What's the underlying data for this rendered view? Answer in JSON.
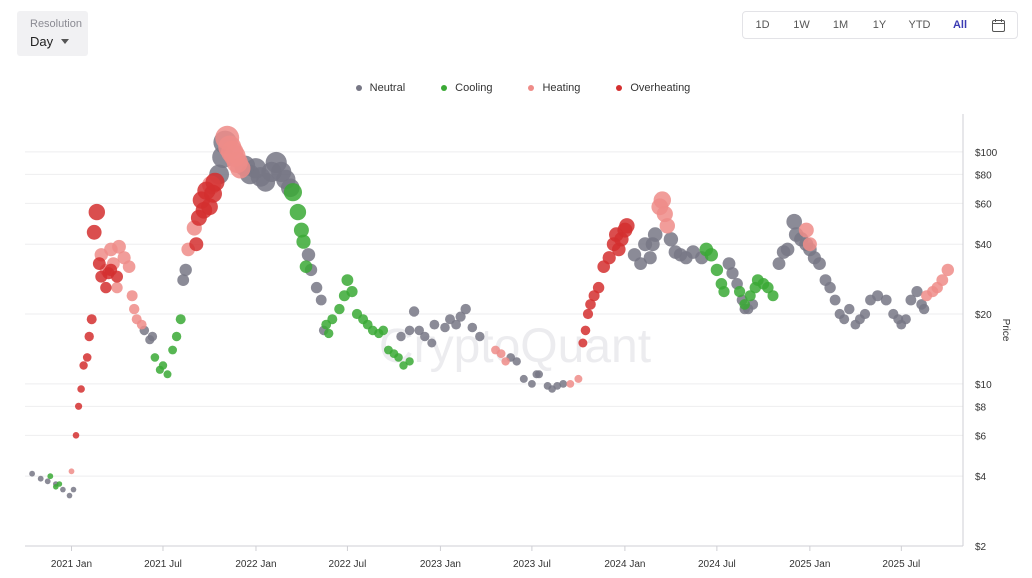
{
  "resolution": {
    "label": "Resolution",
    "value": "Day"
  },
  "ranges": [
    {
      "label": "1D",
      "active": false
    },
    {
      "label": "1W",
      "active": false
    },
    {
      "label": "1M",
      "active": false
    },
    {
      "label": "1Y",
      "active": false
    },
    {
      "label": "YTD",
      "active": false
    },
    {
      "label": "All",
      "active": true
    }
  ],
  "calendar_icon": "calendar-icon",
  "watermark": "CryptoQuant",
  "chart_data": {
    "type": "scatter",
    "title": "",
    "xlabel": "",
    "ylabel": "Price",
    "y_scale": "log",
    "ylim": [
      2,
      140
    ],
    "xlim": [
      "2020-10-01",
      "2025-10-31"
    ],
    "x_ticks": [
      "2021 Jan",
      "2021 Jul",
      "2022 Jan",
      "2022 Jul",
      "2023 Jan",
      "2023 Jul",
      "2024 Jan",
      "2024 Jul",
      "2025 Jan",
      "2025 Jul"
    ],
    "x_tick_dates": [
      "2021-01-01",
      "2021-07-01",
      "2022-01-01",
      "2022-07-01",
      "2023-01-01",
      "2023-07-01",
      "2024-01-01",
      "2024-07-01",
      "2025-01-01",
      "2025-07-01"
    ],
    "y_ticks": [
      {
        "value": 100,
        "label": "$100"
      },
      {
        "value": 80,
        "label": "$80"
      },
      {
        "value": 60,
        "label": "$60"
      },
      {
        "value": 40,
        "label": "$40"
      },
      {
        "value": 20,
        "label": "$20"
      },
      {
        "value": 10,
        "label": "$10"
      },
      {
        "value": 8,
        "label": "$8"
      },
      {
        "value": 6,
        "label": "$6"
      },
      {
        "value": 4,
        "label": "$4"
      },
      {
        "value": 2,
        "label": "$2"
      }
    ],
    "legend_position": "top-center",
    "grid": true,
    "series": [
      {
        "name": "Neutral",
        "color": "#777785",
        "points": [
          [
            "2020-10-15",
            4.1
          ],
          [
            "2020-11-01",
            3.9
          ],
          [
            "2020-11-15",
            3.8
          ],
          [
            "2020-12-01",
            3.7
          ],
          [
            "2020-12-15",
            3.5
          ],
          [
            "2020-12-28",
            3.3
          ],
          [
            "2021-01-05",
            3.5
          ],
          [
            "2021-05-25",
            17
          ],
          [
            "2021-06-05",
            15.5
          ],
          [
            "2021-06-10",
            16
          ],
          [
            "2021-08-10",
            28
          ],
          [
            "2021-08-15",
            31
          ],
          [
            "2021-10-20",
            80
          ],
          [
            "2021-10-28",
            95
          ],
          [
            "2021-11-01",
            110
          ],
          [
            "2021-12-10",
            87
          ],
          [
            "2021-12-20",
            80
          ],
          [
            "2022-01-01",
            85
          ],
          [
            "2022-01-10",
            78
          ],
          [
            "2022-01-20",
            74
          ],
          [
            "2022-02-01",
            82
          ],
          [
            "2022-02-10",
            90
          ],
          [
            "2022-02-20",
            82
          ],
          [
            "2022-03-01",
            76
          ],
          [
            "2022-03-10",
            70
          ],
          [
            "2022-04-15",
            36
          ],
          [
            "2022-04-20",
            31
          ],
          [
            "2022-05-01",
            26
          ],
          [
            "2022-05-10",
            23
          ],
          [
            "2022-05-15",
            17
          ],
          [
            "2022-10-15",
            16
          ],
          [
            "2022-11-01",
            17
          ],
          [
            "2022-11-10",
            20.5
          ],
          [
            "2022-11-20",
            17
          ],
          [
            "2022-12-01",
            16
          ],
          [
            "2022-12-15",
            15
          ],
          [
            "2022-12-20",
            18
          ],
          [
            "2023-01-10",
            17.5
          ],
          [
            "2023-01-20",
            19
          ],
          [
            "2023-02-01",
            18
          ],
          [
            "2023-02-10",
            19.5
          ],
          [
            "2023-02-20",
            21
          ],
          [
            "2023-03-05",
            17.5
          ],
          [
            "2023-03-20",
            16
          ],
          [
            "2023-05-20",
            13
          ],
          [
            "2023-06-01",
            12.5
          ],
          [
            "2023-06-15",
            10.5
          ],
          [
            "2023-07-01",
            10
          ],
          [
            "2023-07-10",
            11
          ],
          [
            "2023-07-15",
            11
          ],
          [
            "2023-08-01",
            9.8
          ],
          [
            "2023-08-10",
            9.5
          ],
          [
            "2023-08-20",
            9.8
          ],
          [
            "2023-09-01",
            10
          ],
          [
            "2024-01-20",
            36
          ],
          [
            "2024-02-01",
            33
          ],
          [
            "2024-02-10",
            40
          ],
          [
            "2024-02-20",
            35
          ],
          [
            "2024-02-25",
            40
          ],
          [
            "2024-03-01",
            44
          ],
          [
            "2024-04-01",
            42
          ],
          [
            "2024-04-10",
            37
          ],
          [
            "2024-04-20",
            36
          ],
          [
            "2024-05-01",
            35
          ],
          [
            "2024-05-15",
            37
          ],
          [
            "2024-06-01",
            35
          ],
          [
            "2024-07-25",
            33
          ],
          [
            "2024-08-01",
            30
          ],
          [
            "2024-08-10",
            27
          ],
          [
            "2024-08-20",
            23
          ],
          [
            "2024-08-25",
            21
          ],
          [
            "2024-09-01",
            21
          ],
          [
            "2024-09-10",
            22
          ],
          [
            "2024-11-01",
            33
          ],
          [
            "2024-11-10",
            37
          ],
          [
            "2024-11-18",
            38
          ],
          [
            "2024-12-01",
            50
          ],
          [
            "2024-12-05",
            44
          ],
          [
            "2024-12-15",
            42
          ],
          [
            "2024-12-25",
            40
          ],
          [
            "2025-01-01",
            38
          ],
          [
            "2025-01-10",
            35
          ],
          [
            "2025-01-20",
            33
          ],
          [
            "2025-02-01",
            28
          ],
          [
            "2025-02-10",
            26
          ],
          [
            "2025-02-20",
            23
          ],
          [
            "2025-03-01",
            20
          ],
          [
            "2025-03-10",
            19
          ],
          [
            "2025-03-20",
            21
          ],
          [
            "2025-04-01",
            18
          ],
          [
            "2025-04-10",
            19
          ],
          [
            "2025-04-20",
            20
          ],
          [
            "2025-05-01",
            23
          ],
          [
            "2025-05-15",
            24
          ],
          [
            "2025-06-01",
            23
          ],
          [
            "2025-06-15",
            20
          ],
          [
            "2025-06-25",
            19
          ],
          [
            "2025-07-01",
            18
          ],
          [
            "2025-07-10",
            19
          ],
          [
            "2025-07-20",
            23
          ],
          [
            "2025-08-01",
            25
          ],
          [
            "2025-08-10",
            22
          ],
          [
            "2025-08-15",
            21
          ]
        ]
      },
      {
        "name": "Cooling",
        "color": "#3aa935",
        "points": [
          [
            "2020-11-20",
            4.0
          ],
          [
            "2020-12-01",
            3.6
          ],
          [
            "2020-12-08",
            3.7
          ],
          [
            "2021-06-15",
            13
          ],
          [
            "2021-06-25",
            11.5
          ],
          [
            "2021-07-01",
            12
          ],
          [
            "2021-07-10",
            11
          ],
          [
            "2021-07-20",
            14
          ],
          [
            "2021-07-28",
            16
          ],
          [
            "2021-08-05",
            19
          ],
          [
            "2022-03-15",
            67
          ],
          [
            "2022-03-25",
            55
          ],
          [
            "2022-04-01",
            46
          ],
          [
            "2022-04-05",
            41
          ],
          [
            "2022-04-10",
            32
          ],
          [
            "2022-05-20",
            18
          ],
          [
            "2022-05-25",
            16.5
          ],
          [
            "2022-06-01",
            19
          ],
          [
            "2022-06-15",
            21
          ],
          [
            "2022-06-25",
            24
          ],
          [
            "2022-07-01",
            28
          ],
          [
            "2022-07-10",
            25
          ],
          [
            "2022-07-20",
            20
          ],
          [
            "2022-08-01",
            19
          ],
          [
            "2022-08-10",
            18
          ],
          [
            "2022-08-20",
            17
          ],
          [
            "2022-09-01",
            16.5
          ],
          [
            "2022-09-10",
            17
          ],
          [
            "2022-09-20",
            14
          ],
          [
            "2022-10-01",
            13.5
          ],
          [
            "2022-10-10",
            13
          ],
          [
            "2022-10-20",
            12
          ],
          [
            "2022-11-01",
            12.5
          ],
          [
            "2024-06-10",
            38
          ],
          [
            "2024-06-20",
            36
          ],
          [
            "2024-07-01",
            31
          ],
          [
            "2024-07-10",
            27
          ],
          [
            "2024-07-15",
            25
          ],
          [
            "2024-08-15",
            25
          ],
          [
            "2024-08-25",
            22
          ],
          [
            "2024-09-05",
            24
          ],
          [
            "2024-09-15",
            26
          ],
          [
            "2024-09-20",
            28
          ],
          [
            "2024-10-01",
            27
          ],
          [
            "2024-10-10",
            26
          ],
          [
            "2024-10-20",
            24
          ]
        ]
      },
      {
        "name": "Heating",
        "color": "#ef8c88",
        "points": [
          [
            "2021-01-01",
            4.2
          ],
          [
            "2021-03-01",
            36
          ],
          [
            "2021-03-10",
            31
          ],
          [
            "2021-03-20",
            38
          ],
          [
            "2021-03-25",
            33
          ],
          [
            "2021-04-01",
            26
          ],
          [
            "2021-04-05",
            39
          ],
          [
            "2021-04-15",
            35
          ],
          [
            "2021-04-25",
            32
          ],
          [
            "2021-05-01",
            24
          ],
          [
            "2021-05-05",
            21
          ],
          [
            "2021-05-10",
            19
          ],
          [
            "2021-05-20",
            18
          ],
          [
            "2021-08-20",
            38
          ],
          [
            "2021-09-01",
            47
          ],
          [
            "2021-10-05",
            72
          ],
          [
            "2021-11-05",
            115
          ],
          [
            "2021-11-10",
            105
          ],
          [
            "2021-11-15",
            100
          ],
          [
            "2021-11-20",
            96
          ],
          [
            "2021-11-25",
            90
          ],
          [
            "2021-12-01",
            85
          ],
          [
            "2023-04-20",
            14
          ],
          [
            "2023-05-01",
            13.5
          ],
          [
            "2023-05-10",
            12.5
          ],
          [
            "2023-09-15",
            10
          ],
          [
            "2023-10-01",
            10.5
          ],
          [
            "2024-03-10",
            58
          ],
          [
            "2024-03-15",
            62
          ],
          [
            "2024-03-20",
            54
          ],
          [
            "2024-03-25",
            48
          ],
          [
            "2024-12-25",
            46
          ],
          [
            "2025-01-01",
            40
          ],
          [
            "2025-08-20",
            24
          ],
          [
            "2025-09-01",
            25
          ],
          [
            "2025-09-10",
            26
          ],
          [
            "2025-09-20",
            28
          ],
          [
            "2025-10-01",
            31
          ]
        ]
      },
      {
        "name": "Overheating",
        "color": "#d42f2f",
        "points": [
          [
            "2021-01-10",
            6
          ],
          [
            "2021-01-15",
            8
          ],
          [
            "2021-01-20",
            9.5
          ],
          [
            "2021-01-25",
            12
          ],
          [
            "2021-02-01",
            13
          ],
          [
            "2021-02-05",
            16
          ],
          [
            "2021-02-10",
            19
          ],
          [
            "2021-02-15",
            45
          ],
          [
            "2021-02-20",
            55
          ],
          [
            "2021-02-25",
            33
          ],
          [
            "2021-03-01",
            29
          ],
          [
            "2021-03-10",
            26
          ],
          [
            "2021-03-15",
            30
          ],
          [
            "2021-03-20",
            31
          ],
          [
            "2021-04-01",
            29
          ],
          [
            "2021-09-05",
            40
          ],
          [
            "2021-09-10",
            52
          ],
          [
            "2021-09-15",
            62
          ],
          [
            "2021-09-20",
            56
          ],
          [
            "2021-09-25",
            68
          ],
          [
            "2021-10-01",
            58
          ],
          [
            "2021-10-08",
            66
          ],
          [
            "2021-10-12",
            74
          ],
          [
            "2023-10-10",
            15
          ],
          [
            "2023-10-15",
            17
          ],
          [
            "2023-10-20",
            20
          ],
          [
            "2023-10-25",
            22
          ],
          [
            "2023-11-01",
            24
          ],
          [
            "2023-11-10",
            26
          ],
          [
            "2023-11-20",
            32
          ],
          [
            "2023-12-01",
            35
          ],
          [
            "2023-12-10",
            40
          ],
          [
            "2023-12-15",
            44
          ],
          [
            "2023-12-20",
            38
          ],
          [
            "2023-12-25",
            42
          ],
          [
            "2024-01-01",
            46
          ],
          [
            "2024-01-05",
            48
          ]
        ]
      }
    ]
  }
}
